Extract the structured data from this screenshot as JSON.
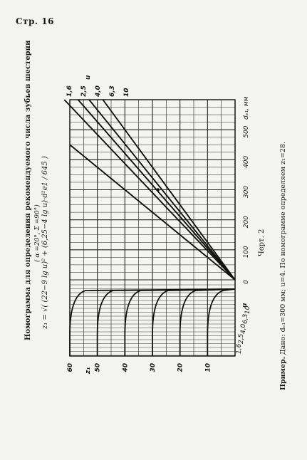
{
  "header": {
    "page_label": "Стр. 16"
  },
  "title": "Номограмма для определения рекомендуемого числа зубьев шестерни",
  "subtitle": "( α =20°, Σ =90°)",
  "formula": "z₁ = √( (22−9 lg u)² + (6,25−4 lg u)·d²e1 / 645 )",
  "caption": "Черт. 2",
  "example": {
    "lead": "Пример.",
    "text": " Дано: dₑ₁=300 мм; u=4. По номограмме определяем z₁=28."
  },
  "chart_data": {
    "type": "line",
    "top_axis": {
      "label": "dₑ₁, мм",
      "ticks": [
        "0",
        "100",
        "200",
        "300",
        "400",
        "500"
      ],
      "range": [
        0,
        600
      ]
    },
    "left_axis": {
      "label": "z₁",
      "ticks": [
        "60",
        "50",
        "40",
        "30",
        "20",
        "10"
      ],
      "range": [
        0,
        60
      ]
    },
    "u_axis_label": "u",
    "u_values_upper": [
      "1,6",
      "2,5",
      "4,0",
      "6,3",
      "10"
    ],
    "u_values_lower": [
      "1,6",
      "2,5",
      "4,0",
      "6,3",
      "10"
    ],
    "series": [
      {
        "name": "1,6",
        "points": [
          [
            0,
            0
          ],
          [
            600,
            62
          ]
        ]
      },
      {
        "name": "2,5",
        "points": [
          [
            0,
            0
          ],
          [
            600,
            57
          ]
        ]
      },
      {
        "name": "4,0",
        "points": [
          [
            0,
            0
          ],
          [
            600,
            53
          ]
        ]
      },
      {
        "name": "6,3",
        "points": [
          [
            0,
            0
          ],
          [
            600,
            48
          ]
        ]
      },
      {
        "name": "10",
        "points": [
          [
            0,
            0
          ],
          [
            450,
            60
          ]
        ]
      }
    ],
    "example_point": {
      "d": 300,
      "u": 4.0,
      "z1": 28
    }
  }
}
